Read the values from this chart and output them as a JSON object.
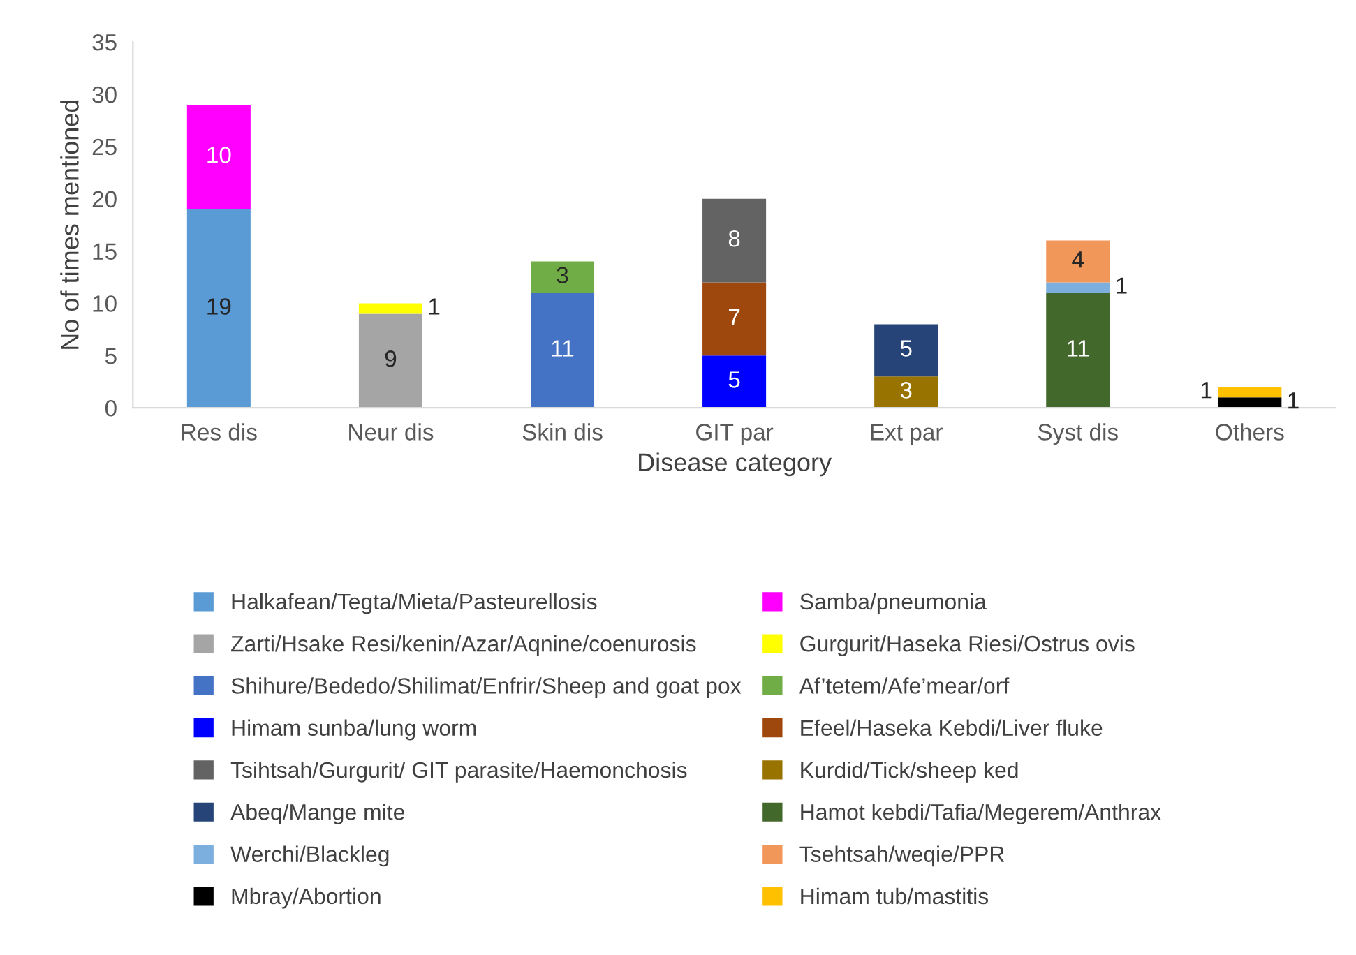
{
  "chart_data": {
    "type": "bar",
    "stacked": true,
    "xlabel": "Disease category",
    "ylabel": "No of times mentioned",
    "categories": [
      "Res dis",
      "Neur dis",
      "Skin dis",
      "GIT par",
      "Ext par",
      "Syst dis",
      "Others"
    ],
    "ylim": [
      0,
      35
    ],
    "yticks": [
      0,
      5,
      10,
      15,
      20,
      25,
      30,
      35
    ],
    "grid": false,
    "legend": "bottom",
    "data_labels": true,
    "series": [
      {
        "name": "Halkafean/Tegta/Mieta/Pasteurellosis",
        "color": "#5b9bd5",
        "values": [
          19,
          null,
          null,
          null,
          null,
          null,
          null
        ]
      },
      {
        "name": "Samba/pneumonia",
        "color": "#ff00ff",
        "values": [
          10,
          null,
          null,
          null,
          null,
          null,
          null
        ]
      },
      {
        "name": "Zarti/Hsake Resi/kenin/Azar/Aqnine/coenurosis",
        "color": "#a5a5a5",
        "values": [
          null,
          9,
          null,
          null,
          null,
          null,
          null
        ]
      },
      {
        "name": "Gurgurit/Haseka Riesi/Ostrus ovis",
        "color": "#ffff00",
        "values": [
          null,
          1,
          null,
          null,
          null,
          null,
          null
        ]
      },
      {
        "name": "Shihure/Bededo/Shilimat/Enfrir/Sheep and goat pox",
        "color": "#4472c4",
        "values": [
          null,
          null,
          11,
          null,
          null,
          null,
          null
        ]
      },
      {
        "name": "Af’tetem/Afe’mear/orf",
        "color": "#70ad47",
        "values": [
          null,
          null,
          3,
          null,
          null,
          null,
          null
        ]
      },
      {
        "name": "Himam sunba/lung worm",
        "color": "#0000ff",
        "values": [
          null,
          null,
          null,
          5,
          null,
          null,
          null
        ]
      },
      {
        "name": "Efeel/Haseka Kebdi/Liver fluke",
        "color": "#9e480e",
        "values": [
          null,
          null,
          null,
          7,
          null,
          null,
          null
        ]
      },
      {
        "name": "Tsihtsah/Gurgurit/ GIT parasite/Haemonchosis",
        "color": "#636363",
        "values": [
          null,
          null,
          null,
          8,
          null,
          null,
          null
        ]
      },
      {
        "name": "Kurdid/Tick/sheep ked",
        "color": "#997300",
        "values": [
          null,
          null,
          null,
          null,
          3,
          null,
          null
        ]
      },
      {
        "name": "Abeq/Mange mite",
        "color": "#264478",
        "values": [
          null,
          null,
          null,
          null,
          5,
          null,
          null
        ]
      },
      {
        "name": "Hamot kebdi/Tafia/Megerem/Anthrax",
        "color": "#43682b",
        "values": [
          null,
          null,
          null,
          null,
          null,
          11,
          null
        ]
      },
      {
        "name": "Werchi/Blackleg",
        "color": "#7cafdd",
        "values": [
          null,
          null,
          null,
          null,
          null,
          1,
          null
        ]
      },
      {
        "name": "Tsehtsah/weqie/PPR",
        "color": "#f1975a",
        "values": [
          null,
          null,
          null,
          null,
          null,
          4,
          null
        ]
      },
      {
        "name": "Mbray/Abortion",
        "color": "#000000",
        "values": [
          null,
          null,
          null,
          null,
          null,
          null,
          1
        ]
      },
      {
        "name": "Himam tub/mastitis",
        "color": "#ffc000",
        "values": [
          null,
          null,
          null,
          null,
          null,
          null,
          1
        ]
      }
    ]
  }
}
